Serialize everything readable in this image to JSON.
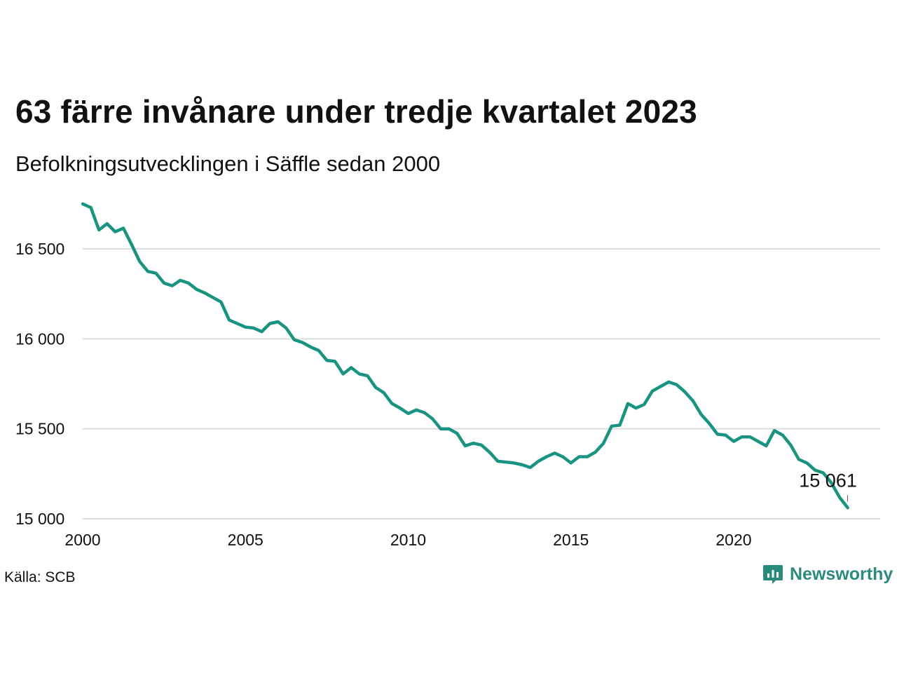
{
  "brand": {
    "name": "Newsworthy",
    "color": "#2a8a7c"
  },
  "source_text": "Källa: SCB",
  "chart_data": {
    "type": "line",
    "title": "63 färre invånare under tredje kvartalet 2023",
    "subtitle": "Befolkningsutvecklingen i Säffle sedan 2000",
    "xlabel": "",
    "ylabel": "",
    "line_color": "#1a9482",
    "grid": true,
    "y_gridlines": true,
    "xlim": [
      2000,
      2024.5
    ],
    "ylim": [
      15000,
      16800
    ],
    "x_ticks": [
      2000,
      2005,
      2010,
      2015,
      2020
    ],
    "x_tick_labels": [
      "2000",
      "2005",
      "2010",
      "2015",
      "2020"
    ],
    "y_ticks": [
      15000,
      15500,
      16000,
      16500
    ],
    "y_tick_labels": [
      "15 000",
      "15 500",
      "16 000",
      "16 500"
    ],
    "end_label": {
      "x": 2023.5,
      "y": 15061,
      "text": "15 061"
    },
    "series": [
      {
        "x": [
          2000.0,
          2000.25,
          2000.5,
          2000.75,
          2001.0,
          2001.25,
          2001.5,
          2001.75,
          2002.0,
          2002.25,
          2002.5,
          2002.75,
          2003.0,
          2003.25,
          2003.5,
          2003.75,
          2004.0,
          2004.25,
          2004.5,
          2004.75,
          2005.0,
          2005.25,
          2005.5,
          2005.75,
          2006.0,
          2006.25,
          2006.5,
          2006.75,
          2007.0,
          2007.25,
          2007.5,
          2007.75,
          2008.0,
          2008.25,
          2008.5,
          2008.75,
          2009.0,
          2009.25,
          2009.5,
          2009.75,
          2010.0,
          2010.25,
          2010.5,
          2010.75,
          2011.0,
          2011.25,
          2011.5,
          2011.75,
          2012.0,
          2012.25,
          2012.5,
          2012.75,
          2013.0,
          2013.25,
          2013.5,
          2013.75,
          2014.0,
          2014.25,
          2014.5,
          2014.75,
          2015.0,
          2015.25,
          2015.5,
          2015.75,
          2016.0,
          2016.25,
          2016.5,
          2016.75,
          2017.0,
          2017.25,
          2017.5,
          2017.75,
          2018.0,
          2018.25,
          2018.5,
          2018.75,
          2019.0,
          2019.25,
          2019.5,
          2019.75,
          2020.0,
          2020.25,
          2020.5,
          2020.75,
          2021.0,
          2021.25,
          2021.5,
          2021.75,
          2022.0,
          2022.25,
          2022.5,
          2022.75,
          2023.0,
          2023.25,
          2023.5
        ],
        "values": [
          16750,
          16730,
          16605,
          16640,
          16595,
          16615,
          16525,
          16430,
          16375,
          16365,
          16310,
          16295,
          16325,
          16310,
          16275,
          16255,
          16230,
          16205,
          16105,
          16085,
          16065,
          16060,
          16040,
          16085,
          16095,
          16060,
          15995,
          15980,
          15955,
          15935,
          15880,
          15875,
          15805,
          15840,
          15805,
          15795,
          15730,
          15700,
          15640,
          15615,
          15585,
          15605,
          15590,
          15555,
          15500,
          15500,
          15475,
          15405,
          15420,
          15410,
          15370,
          15320,
          15315,
          15310,
          15300,
          15285,
          15320,
          15345,
          15365,
          15345,
          15310,
          15345,
          15345,
          15370,
          15420,
          15515,
          15520,
          15640,
          15615,
          15635,
          15710,
          15735,
          15760,
          15745,
          15705,
          15655,
          15580,
          15530,
          15470,
          15465,
          15430,
          15455,
          15455,
          15430,
          15405,
          15490,
          15465,
          15410,
          15330,
          15310,
          15270,
          15255,
          15200,
          15120,
          15061
        ]
      }
    ]
  }
}
